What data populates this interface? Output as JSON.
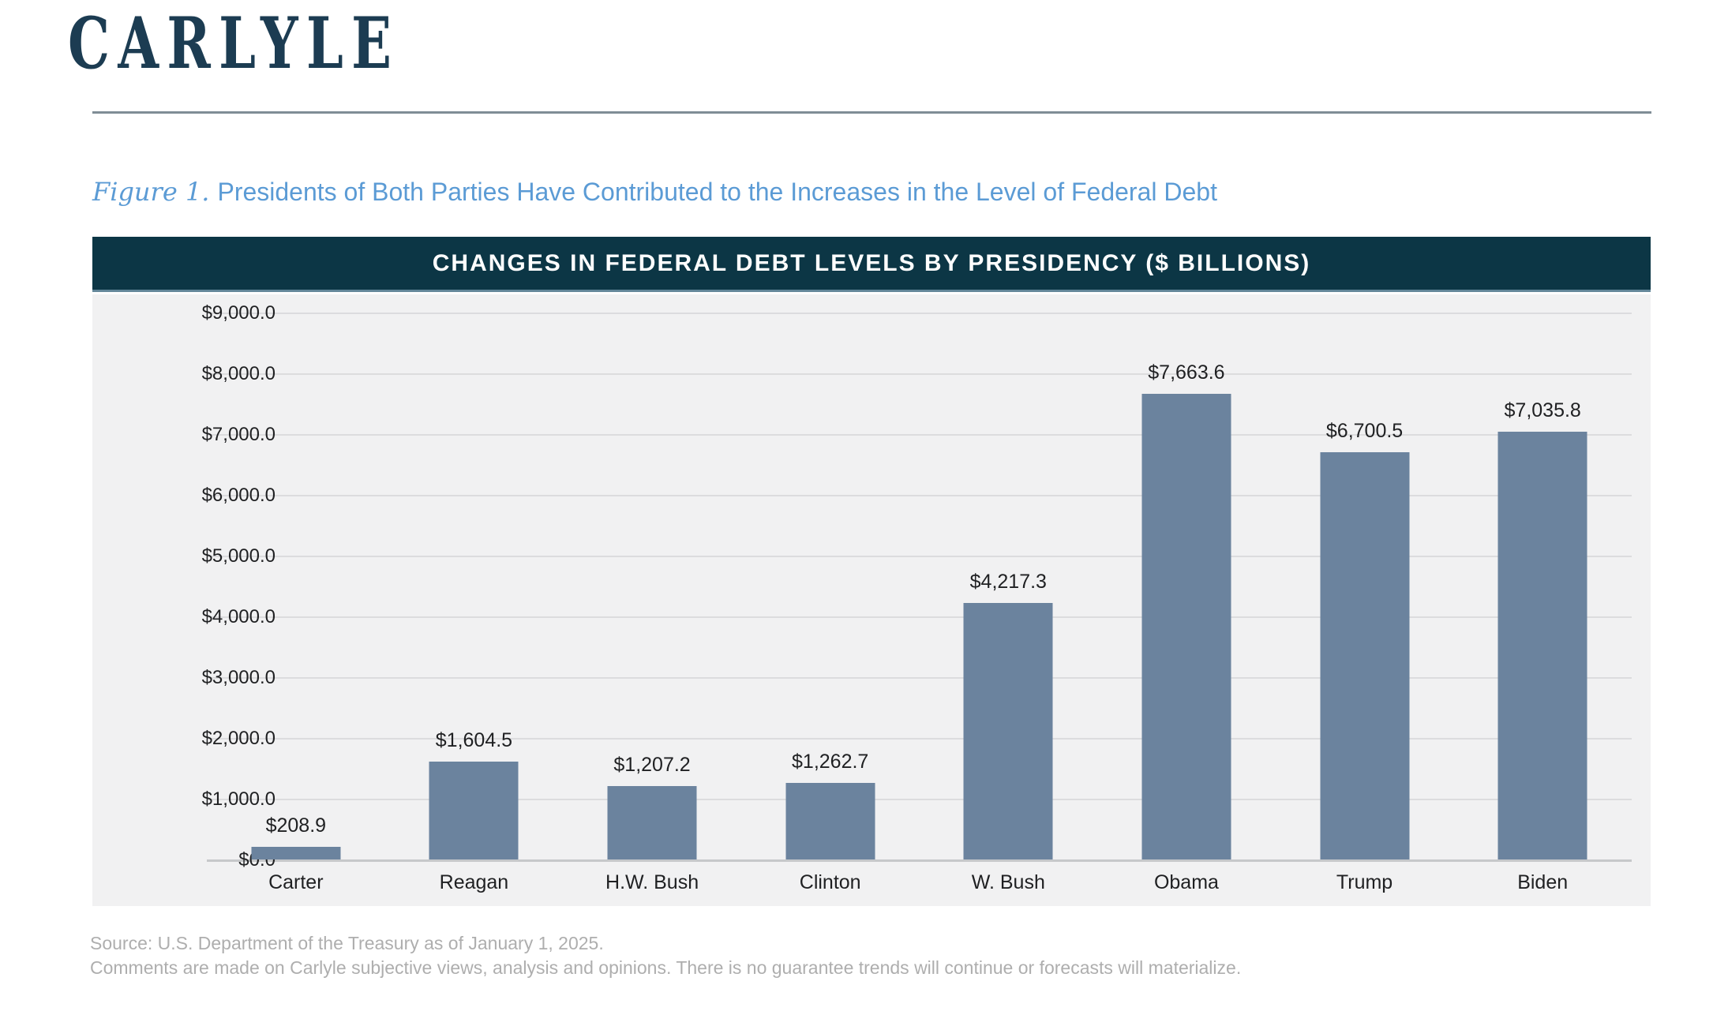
{
  "brand": {
    "logo_text": "CARLYLE"
  },
  "figure": {
    "label": "Figure 1.",
    "title": "Presidents of Both Parties Have Contributed to the Increases in the Level of Federal Debt"
  },
  "chart": {
    "header": "CHANGES IN FEDERAL DEBT LEVELS BY PRESIDENCY ($ BILLIONS)"
  },
  "chart_data": {
    "type": "bar",
    "title": "CHANGES IN FEDERAL DEBT LEVELS BY PRESIDENCY ($ BILLIONS)",
    "categories": [
      "Carter",
      "Reagan",
      "H.W. Bush",
      "Clinton",
      "W. Bush",
      "Obama",
      "Trump",
      "Biden"
    ],
    "values": [
      208.9,
      1604.5,
      1207.2,
      1262.7,
      4217.3,
      7663.6,
      6700.5,
      7035.8
    ],
    "value_labels": [
      "$208.9",
      "$1,604.5",
      "$1,207.2",
      "$1,262.7",
      "$4,217.3",
      "$7,663.6",
      "$6,700.5",
      "$7,035.8"
    ],
    "y_ticks": [
      "$9,000.0",
      "$8,000.0",
      "$7,000.0",
      "$6,000.0",
      "$5,000.0",
      "$4,000.0",
      "$3,000.0",
      "$2,000.0",
      "$1,000.0",
      "$0.0"
    ],
    "y_tick_values": [
      9000,
      8000,
      7000,
      6000,
      5000,
      4000,
      3000,
      2000,
      1000,
      0
    ],
    "xlabel": "",
    "ylabel": "",
    "ylim": [
      0,
      9000
    ],
    "grid": true,
    "legend": "none",
    "colors": {
      "bar": "#6b839e",
      "header_bg": "#0c3645",
      "header_text": "#ffffff",
      "plot_bg": "#f1f1f2",
      "gridline": "#dcdcde",
      "accent_blue": "#5b9bd5",
      "brand_navy": "#1c3c52",
      "label_text": "#1f2022",
      "source_text": "#aeaeae"
    }
  },
  "footer": {
    "source_line1": "Source: U.S. Department of the Treasury as of January 1, 2025.",
    "source_line2": "Comments are made on Carlyle subjective views, analysis and opinions. There is no guarantee trends will continue or forecasts will materialize."
  }
}
